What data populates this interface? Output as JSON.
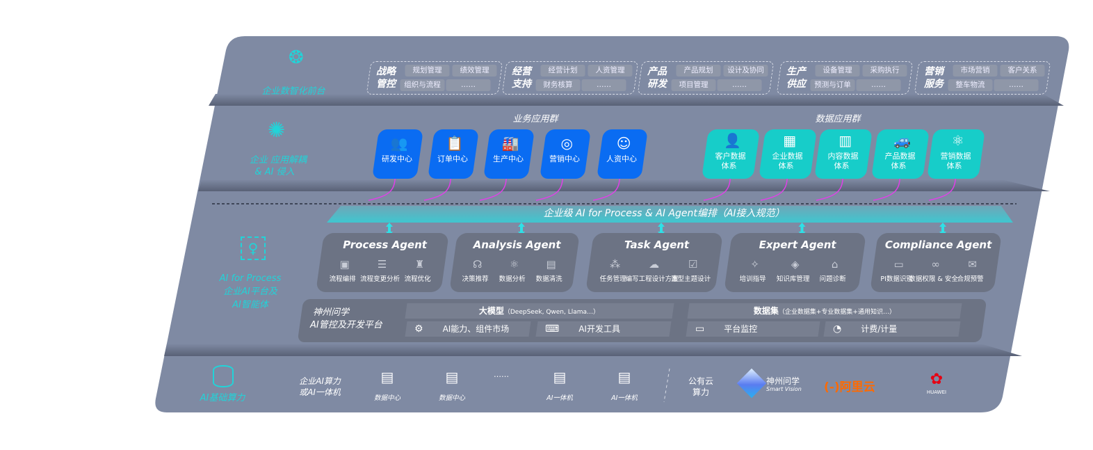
{
  "layers": {
    "front": {
      "label": "企业数智化前台",
      "icon": "brain-icon"
    },
    "apps": {
      "label_line1": "企业 应用解耦",
      "label_line2": "& AI 侵入",
      "icon": "molecule-icon"
    },
    "ai": {
      "label_line1": "AI for Process",
      "label_line2": "企业AI平台及",
      "label_line3": "AI智能体",
      "icon": "face-scan-icon"
    },
    "compute": {
      "label": "AI基础算力",
      "icon": "database-icon"
    }
  },
  "front_groups": [
    {
      "title1": "战略",
      "title2": "管控",
      "chips": [
        "规划管理",
        "绩效管理",
        "组织与流程",
        "……"
      ]
    },
    {
      "title1": "经营",
      "title2": "支持",
      "chips": [
        "经营计划",
        "人资管理",
        "财务核算",
        "……"
      ]
    },
    {
      "title1": "产品",
      "title2": "研发",
      "chips": [
        "产品规划",
        "设计及协同",
        "项目管理",
        "……"
      ]
    },
    {
      "title1": "生产",
      "title2": "供应",
      "chips": [
        "设备管理",
        "采购执行",
        "预测与订单",
        "……"
      ]
    },
    {
      "title1": "营销",
      "title2": "服务",
      "chips": [
        "市场营销",
        "客户关系",
        "整车物流",
        "……"
      ]
    }
  ],
  "business_apps": {
    "title": "业务应用群",
    "items": [
      {
        "label": "研发中心",
        "icon": "people-icon"
      },
      {
        "label": "订单中心",
        "icon": "clipboard-icon"
      },
      {
        "label": "生产中心",
        "icon": "factory-icon"
      },
      {
        "label": "营销中心",
        "icon": "target-icon"
      },
      {
        "label": "人资中心",
        "icon": "person-handshake-icon"
      }
    ]
  },
  "data_apps": {
    "title": "数据应用群",
    "items": [
      {
        "label1": "客户数据",
        "label2": "体系",
        "icon": "user-icon"
      },
      {
        "label1": "企业数据",
        "label2": "体系",
        "icon": "building-icon"
      },
      {
        "label1": "内容数据",
        "label2": "体系",
        "icon": "books-icon"
      },
      {
        "label1": "产品数据",
        "label2": "体系",
        "icon": "car-icon"
      },
      {
        "label1": "营销数据",
        "label2": "体系",
        "icon": "atom-icon"
      }
    ]
  },
  "orchestration_banner": "企业级 AI for Process & AI Agent编排（AI接入规范）",
  "agents": [
    {
      "name": "Process Agent",
      "items": [
        {
          "label": "流程编排",
          "icon": "chart-window-icon"
        },
        {
          "label": "流程变更分析",
          "icon": "list-settings-icon"
        },
        {
          "label": "流程优化",
          "icon": "cake-icon"
        }
      ]
    },
    {
      "name": "Analysis Agent",
      "items": [
        {
          "label": "决策推荐",
          "icon": "head-idea-icon"
        },
        {
          "label": "数据分析",
          "icon": "atom-icon"
        },
        {
          "label": "数据清洗",
          "icon": "document-scan-icon"
        }
      ]
    },
    {
      "name": "Task Agent",
      "items": [
        {
          "label": "任务管理",
          "icon": "network-icon"
        },
        {
          "label": "编写工程设计方案",
          "icon": "cloud-icon"
        },
        {
          "label": "造型主题设计",
          "icon": "checklist-clock-icon"
        }
      ]
    },
    {
      "name": "Expert Agent",
      "items": [
        {
          "label": "培训指导",
          "icon": "wand-icon"
        },
        {
          "label": "知识库管理",
          "icon": "layers-icon"
        },
        {
          "label": "问题诊断",
          "icon": "diagnosis-icon"
        }
      ]
    },
    {
      "name": "Compliance Agent",
      "items": [
        {
          "label": "PI数据识别",
          "icon": "id-card-icon"
        },
        {
          "label": "数据权限 & 安全",
          "icon": "link-icon"
        },
        {
          "label": "合规预警",
          "icon": "alert-mail-icon"
        }
      ]
    }
  ],
  "platform": {
    "title1": "神州问学",
    "title2": "AI管控及开发平台",
    "model_title": "大模型",
    "model_note": "（DeepSeek, Qwen, Llama…）",
    "dataset_title": "数据集",
    "dataset_note": "（企业数据集+专业数据集+通用知识…）",
    "tools": [
      {
        "label": "AI能力、组件市场",
        "icon": "market-settings-icon"
      },
      {
        "label": "AI开发工具",
        "icon": "dev-tool-icon"
      },
      {
        "label": "平台监控",
        "icon": "monitor-icon"
      },
      {
        "label": "计费/计量",
        "icon": "gauge-icon"
      }
    ]
  },
  "compute": {
    "enterprise_label1": "企业AI算力",
    "enterprise_label2": "或AI一体机",
    "servers": [
      {
        "label": "数据中心",
        "icon": "server-icon"
      },
      {
        "label": "数据中心",
        "icon": "server-icon"
      },
      {
        "label": "AI一体机",
        "icon": "server-icon"
      },
      {
        "label": "AI一体机",
        "icon": "server-icon"
      }
    ],
    "ellipsis": "……",
    "public_label1": "公有云",
    "public_label2": "算力",
    "vendors": [
      {
        "name": "神州问学",
        "sub": "Smart Vision",
        "icon": "smart-vision-logo"
      },
      {
        "name": "阿里云",
        "mark": "(-)",
        "color": "#ff6a00",
        "icon": "aliyun-logo"
      },
      {
        "name": "HUAWEI",
        "color": "#e60012",
        "icon": "huawei-logo"
      }
    ]
  },
  "colors": {
    "panel": "#7f8aa3",
    "blue_card": "#0a6cf2",
    "teal_card": "#17cdc9",
    "accent_cyan": "#22d3d8",
    "arrow_magenta": "#e040e8",
    "agent_box": "#6c7384"
  }
}
